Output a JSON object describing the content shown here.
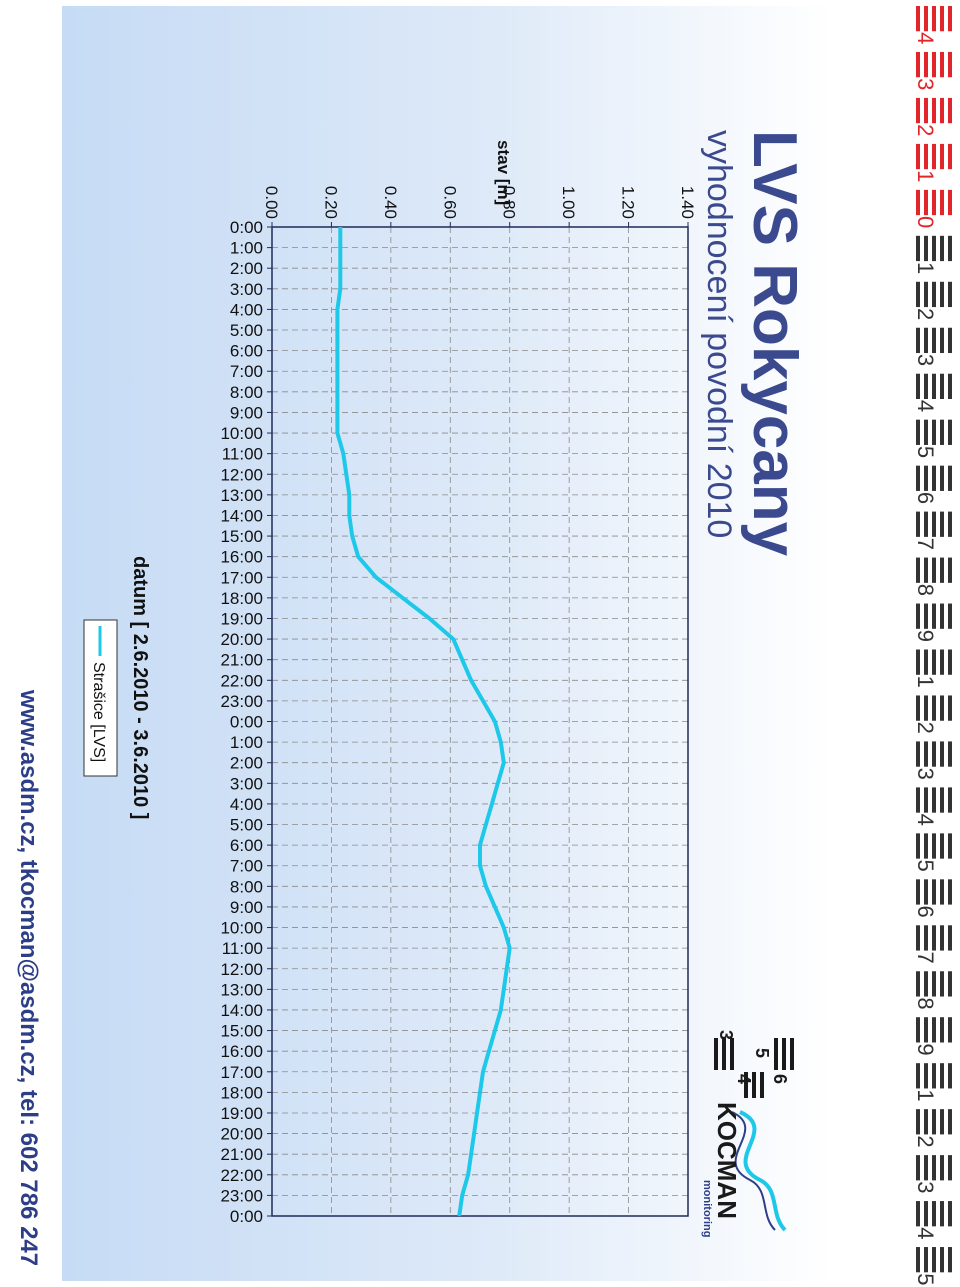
{
  "header": {
    "title": "LVS Rokycany",
    "subtitle": "vyhodnocení povodní 2010"
  },
  "logo": {
    "brand": "KOCMAN",
    "tagline": "monitoring",
    "digits": [
      "6",
      "5",
      "4",
      "3"
    ]
  },
  "footer": {
    "contact": "www.asdm.cz, tkocman@asdm.cz, tel: 602 786 247"
  },
  "colors": {
    "series": "#1ec8e8",
    "title": "#3b4a8e",
    "panel": "#d2e4f8",
    "ruler_red": "#e0262b"
  },
  "ruler": {
    "labels": [
      "4",
      "3",
      "2",
      "1",
      "0",
      "1",
      "2",
      "3",
      "4",
      "5",
      "6",
      "7",
      "8",
      "9",
      "1",
      "2",
      "3",
      "4",
      "5",
      "6",
      "7",
      "8",
      "9",
      "1",
      "2",
      "3",
      "4",
      "5"
    ]
  },
  "chart_data": {
    "type": "line",
    "ylabel": "stav [m]",
    "xlabel": "datum  [ 2.6.2010 - 3.6.2010 ]",
    "ylim": [
      0,
      1.4
    ],
    "yticks": [
      "0.00",
      "0.20",
      "0.40",
      "0.60",
      "0.80",
      "1.00",
      "1.20",
      "1.40"
    ],
    "grid": true,
    "legend_position": "below plot",
    "x": [
      "0:00",
      "1:00",
      "2:00",
      "3:00",
      "4:00",
      "5:00",
      "6:00",
      "7:00",
      "8:00",
      "9:00",
      "10:00",
      "11:00",
      "12:00",
      "13:00",
      "14:00",
      "15:00",
      "16:00",
      "17:00",
      "18:00",
      "19:00",
      "20:00",
      "21:00",
      "22:00",
      "23:00",
      "0:00",
      "1:00",
      "2:00",
      "3:00",
      "4:00",
      "5:00",
      "6:00",
      "7:00",
      "8:00",
      "9:00",
      "10:00",
      "11:00",
      "12:00",
      "13:00",
      "14:00",
      "15:00",
      "16:00",
      "17:00",
      "18:00",
      "19:00",
      "20:00",
      "21:00",
      "22:00",
      "23:00",
      "0:00"
    ],
    "series": [
      {
        "name": "Strašice [LVS]",
        "values": [
          0.23,
          0.23,
          0.23,
          0.23,
          0.22,
          0.22,
          0.22,
          0.22,
          0.22,
          0.22,
          0.22,
          0.24,
          0.25,
          0.26,
          0.26,
          0.27,
          0.29,
          0.35,
          0.44,
          0.53,
          0.61,
          0.64,
          0.67,
          0.71,
          0.75,
          0.77,
          0.78,
          0.76,
          0.74,
          0.72,
          0.7,
          0.7,
          0.72,
          0.75,
          0.78,
          0.8,
          0.79,
          0.78,
          0.77,
          0.75,
          0.73,
          0.71,
          0.7,
          0.69,
          0.68,
          0.67,
          0.66,
          0.64,
          0.63
        ]
      }
    ]
  }
}
